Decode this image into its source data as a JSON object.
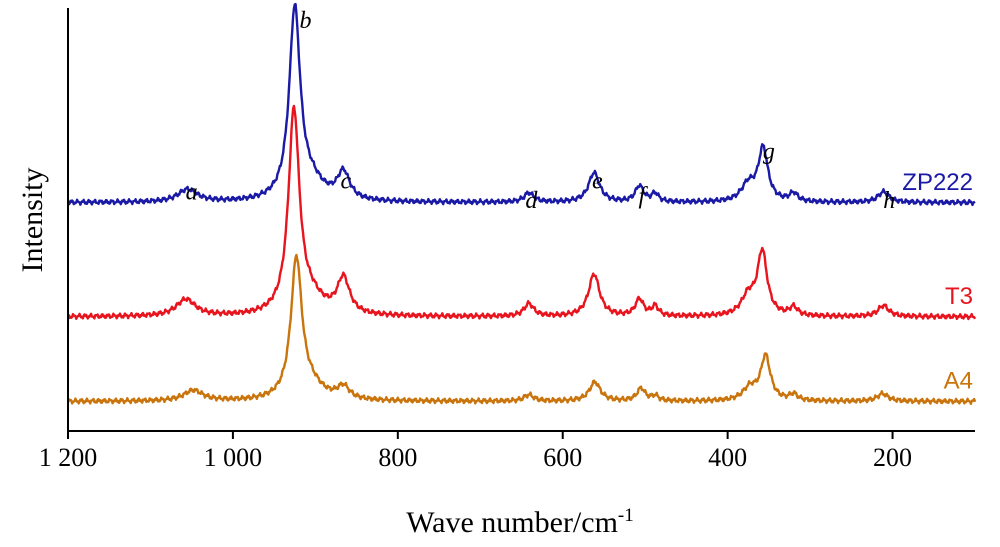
{
  "chart_data": {
    "type": "line",
    "title": "",
    "xlabel": "Wave number/cm",
    "xlabel_sup": "-1",
    "ylabel": "Intensity",
    "xlim": [
      1200,
      100
    ],
    "x_reversed": true,
    "xticks": [
      1200,
      1000,
      800,
      600,
      400,
      200
    ],
    "xtick_labels": [
      "1 200",
      "1 000",
      "800",
      "600",
      "400",
      "200"
    ],
    "ylim": [
      0,
      100
    ],
    "y_ticks_shown": false,
    "grid": false,
    "legend": "none",
    "series": [
      {
        "name": "ZP222",
        "color": "#1a1aa6",
        "baseline": 54,
        "peaks": [
          {
            "x": 1055,
            "h": 3.0,
            "w": 14
          },
          {
            "x": 925,
            "h": 45.0,
            "w": 8
          },
          {
            "x": 905,
            "h": 4.0,
            "w": 18
          },
          {
            "x": 866,
            "h": 6.5,
            "w": 9
          },
          {
            "x": 641,
            "h": 2.2,
            "w": 7
          },
          {
            "x": 562,
            "h": 7.0,
            "w": 8
          },
          {
            "x": 507,
            "h": 3.8,
            "w": 6
          },
          {
            "x": 488,
            "h": 2.0,
            "w": 5
          },
          {
            "x": 375,
            "h": 4.0,
            "w": 10
          },
          {
            "x": 357,
            "h": 12.5,
            "w": 7
          },
          {
            "x": 320,
            "h": 2.0,
            "w": 6
          },
          {
            "x": 211,
            "h": 2.5,
            "w": 8
          }
        ]
      },
      {
        "name": "T3",
        "color": "#e8141e",
        "baseline": 27,
        "peaks": [
          {
            "x": 1057,
            "h": 4.0,
            "w": 14
          },
          {
            "x": 926,
            "h": 48.0,
            "w": 8
          },
          {
            "x": 905,
            "h": 3.5,
            "w": 18
          },
          {
            "x": 866,
            "h": 8.5,
            "w": 9
          },
          {
            "x": 641,
            "h": 3.0,
            "w": 7
          },
          {
            "x": 562,
            "h": 10.0,
            "w": 8
          },
          {
            "x": 507,
            "h": 4.0,
            "w": 6
          },
          {
            "x": 488,
            "h": 2.3,
            "w": 5
          },
          {
            "x": 375,
            "h": 4.5,
            "w": 10
          },
          {
            "x": 358,
            "h": 15.0,
            "w": 7
          },
          {
            "x": 320,
            "h": 2.0,
            "w": 6
          },
          {
            "x": 211,
            "h": 2.6,
            "w": 8
          }
        ]
      },
      {
        "name": "A4",
        "color": "#c9740c",
        "baseline": 7,
        "peaks": [
          {
            "x": 1048,
            "h": 2.5,
            "w": 14
          },
          {
            "x": 923,
            "h": 33.0,
            "w": 8
          },
          {
            "x": 905,
            "h": 3.0,
            "w": 18
          },
          {
            "x": 866,
            "h": 3.0,
            "w": 9
          },
          {
            "x": 641,
            "h": 1.5,
            "w": 7
          },
          {
            "x": 561,
            "h": 4.5,
            "w": 8
          },
          {
            "x": 505,
            "h": 3.0,
            "w": 6
          },
          {
            "x": 488,
            "h": 1.2,
            "w": 5
          },
          {
            "x": 373,
            "h": 3.0,
            "w": 10
          },
          {
            "x": 354,
            "h": 10.5,
            "w": 7
          },
          {
            "x": 320,
            "h": 1.5,
            "w": 6
          },
          {
            "x": 212,
            "h": 1.8,
            "w": 8
          }
        ]
      }
    ],
    "annotations": [
      {
        "text": "a",
        "x": 1050,
        "y": 59.5
      },
      {
        "text": "b",
        "x": 912,
        "y": 100
      },
      {
        "text": "c",
        "x": 863,
        "y": 62
      },
      {
        "text": "d",
        "x": 638,
        "y": 57.5
      },
      {
        "text": "e",
        "x": 558,
        "y": 62
      },
      {
        "text": "f",
        "x": 504,
        "y": 58.5
      },
      {
        "text": "g",
        "x": 350,
        "y": 69
      },
      {
        "text": "h",
        "x": 204,
        "y": 57.5
      }
    ]
  }
}
